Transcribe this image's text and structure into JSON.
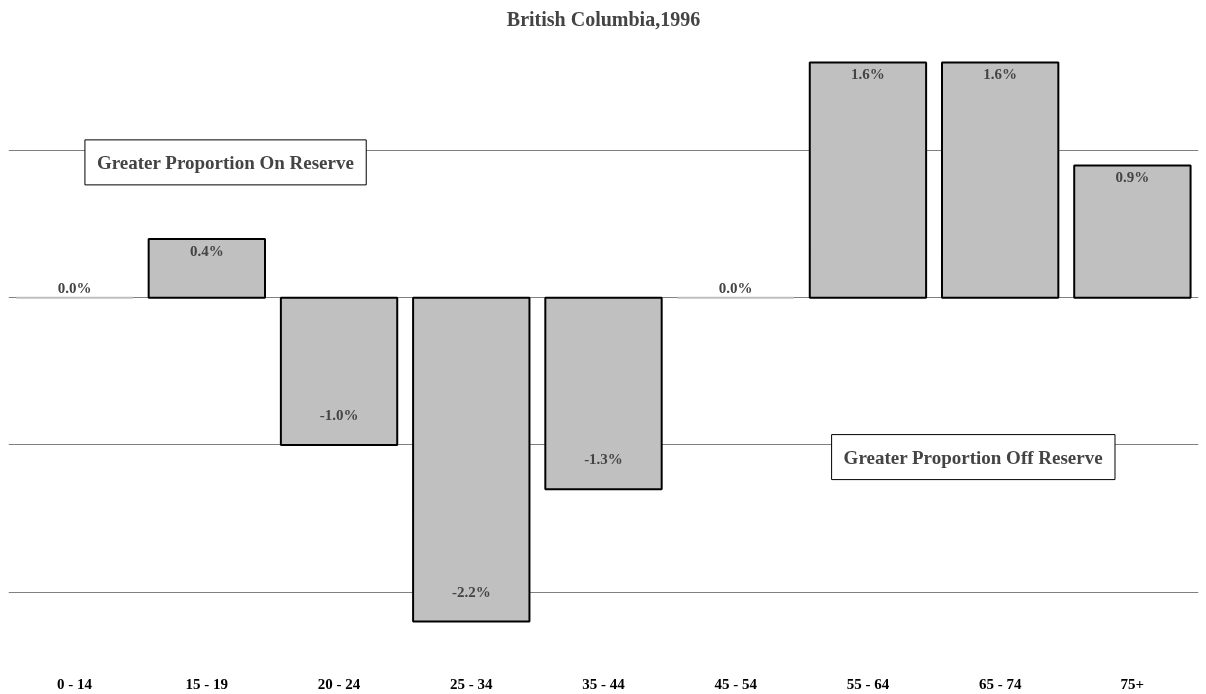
{
  "chart_data": {
    "type": "bar",
    "title": "British Columbia,1996",
    "categories": [
      "0 - 14",
      "15 - 19",
      "20 - 24",
      "25 - 34",
      "35 - 44",
      "45 - 54",
      "55 - 64",
      "65 - 74",
      "75+"
    ],
    "values": [
      0.0,
      0.4,
      -1.0,
      -2.2,
      -1.3,
      0.0,
      1.6,
      1.6,
      0.9
    ],
    "value_labels": [
      "0.0%",
      "0.4%",
      "-1.0%",
      "-2.2%",
      "-1.3%",
      "0.0%",
      "1.6%",
      "1.6%",
      "0.9%"
    ],
    "color": "#c0c0c0",
    "tick_labels": "x",
    "grid": "y",
    "annotations": [
      "Greater Proportion On Reserve",
      "Greater Proportion Off Reserve"
    ]
  }
}
